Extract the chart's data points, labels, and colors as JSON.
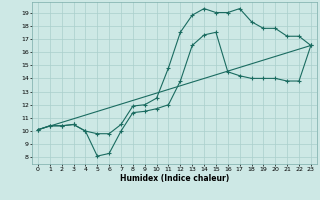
{
  "xlabel": "Humidex (Indice chaleur)",
  "bg_color": "#cde8e5",
  "line_color": "#1a6b60",
  "grid_color": "#aacfcc",
  "xlim": [
    -0.5,
    23.5
  ],
  "ylim": [
    7.5,
    19.8
  ],
  "xticks": [
    0,
    1,
    2,
    3,
    4,
    5,
    6,
    7,
    8,
    9,
    10,
    11,
    12,
    13,
    14,
    15,
    16,
    17,
    18,
    19,
    20,
    21,
    22,
    23
  ],
  "yticks": [
    8,
    9,
    10,
    11,
    12,
    13,
    14,
    15,
    16,
    17,
    18,
    19
  ],
  "line1_x": [
    0,
    1,
    2,
    3,
    4,
    5,
    6,
    7,
    8,
    9,
    10,
    11,
    12,
    13,
    14,
    15,
    16,
    17,
    18,
    19,
    20,
    21,
    22,
    23
  ],
  "line1_y": [
    10.1,
    10.4,
    10.4,
    10.5,
    10.0,
    8.1,
    8.3,
    10.0,
    11.4,
    11.5,
    11.7,
    12.0,
    13.8,
    16.5,
    17.3,
    17.5,
    14.5,
    14.2,
    14.0,
    14.0,
    14.0,
    13.8,
    13.8,
    16.5
  ],
  "line2_x": [
    0,
    1,
    2,
    3,
    4,
    5,
    6,
    7,
    8,
    9,
    10,
    11,
    12,
    13,
    14,
    15,
    16,
    17,
    18,
    19,
    20,
    21,
    22,
    23
  ],
  "line2_y": [
    10.1,
    10.4,
    10.4,
    10.5,
    10.0,
    9.8,
    9.8,
    10.5,
    11.9,
    12.0,
    12.5,
    14.8,
    17.5,
    18.8,
    19.3,
    19.0,
    19.0,
    19.3,
    18.3,
    17.8,
    17.8,
    17.2,
    17.2,
    16.5
  ],
  "line3_x": [
    0,
    23
  ],
  "line3_y": [
    10.1,
    16.5
  ],
  "marker": "+"
}
